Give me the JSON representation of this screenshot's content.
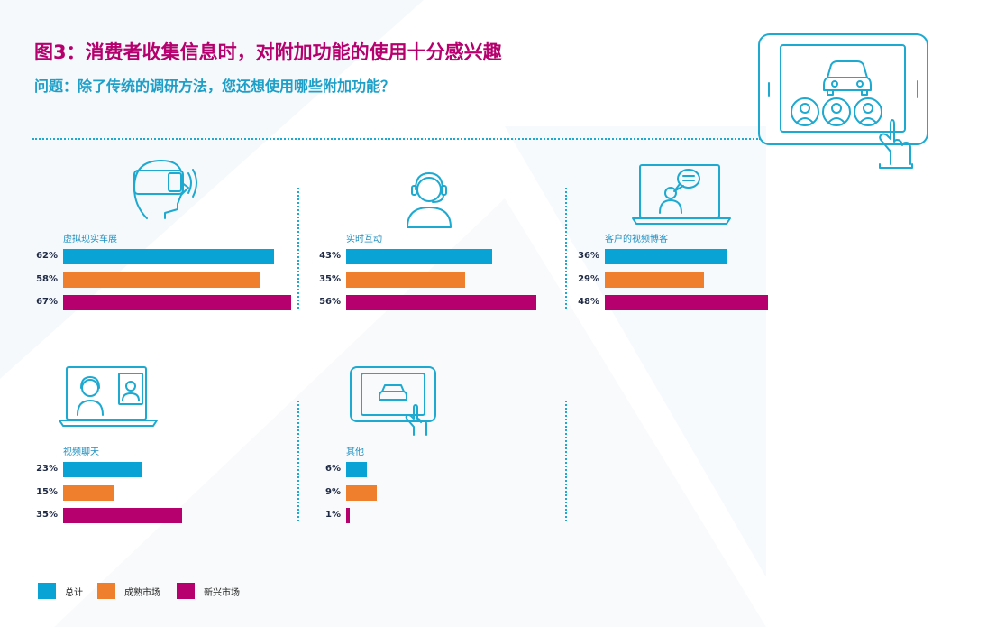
{
  "header": {
    "title": "图3：消费者收集信息时，对附加功能的使用十分感兴趣",
    "subtitle": "问题：除了传统的调研方法，您还想使用哪些附加功能？"
  },
  "colors": {
    "total": "#0aa3d6",
    "mature": "#f07f2d",
    "emerging": "#b5006e",
    "accent": "#1ea9d0"
  },
  "legend": [
    {
      "label": "总计",
      "color": "#0aa3d6"
    },
    {
      "label": "成熟市场",
      "color": "#f07f2d"
    },
    {
      "label": "新兴市场",
      "color": "#b5006e"
    }
  ],
  "icons": [
    "vr-headset-icon",
    "headset-agent-icon",
    "blog-laptop-icon",
    "video-chat-laptop-icon",
    "tablet-car-icon",
    "tablet-touch-icon"
  ],
  "chart_data": {
    "type": "bar",
    "orientation": "horizontal",
    "xlim": [
      0,
      100
    ],
    "unit": "%",
    "groups": [
      {
        "category": "虚拟现实车展",
        "values": [
          62,
          58,
          67
        ],
        "labels": [
          "62%",
          "58%",
          "67%"
        ]
      },
      {
        "category": "实时互动",
        "values": [
          43,
          35,
          56
        ],
        "labels": [
          "43%",
          "35%",
          "56%"
        ]
      },
      {
        "category": "客户的视频博客",
        "values": [
          36,
          29,
          48
        ],
        "labels": [
          "36%",
          "29%",
          "48%"
        ]
      },
      {
        "category": "视频聊天",
        "values": [
          23,
          15,
          35
        ],
        "labels": [
          "23%",
          "15%",
          "35%"
        ]
      },
      {
        "category": "其他",
        "values": [
          6,
          9,
          1
        ],
        "labels": [
          "6%",
          "9%",
          "1%"
        ]
      }
    ],
    "series": [
      {
        "name": "总计",
        "color": "#0aa3d6"
      },
      {
        "name": "成熟市场",
        "color": "#f07f2d"
      },
      {
        "name": "新兴市场",
        "color": "#b5006e"
      }
    ]
  }
}
